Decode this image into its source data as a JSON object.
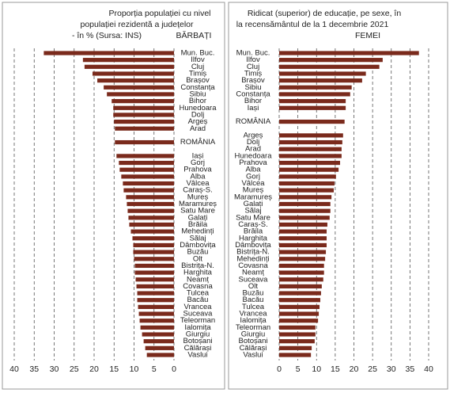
{
  "chart_data": [
    {
      "type": "hbar",
      "title": [
        "Proporția populației cu nivel",
        "populației rezidentă a județelor",
        "- în %  (Sursa: INS)"
      ],
      "categories": [
        "Mun. Buc.",
        "Ilfov",
        "Cluj",
        "Timiș",
        "Brașov",
        "Constanța",
        "Sibiu",
        "Bihor",
        "Hunedoara",
        "Dolj",
        "Argeș",
        "Arad",
        null,
        "ROMÂNIA",
        null,
        "Iași",
        "Gorj",
        "Prahova",
        "Alba",
        "Vâlcea",
        "Caraș-S.",
        "Mureș",
        "Maramureș",
        "Satu Mare",
        "Galați",
        "Brăila",
        "Mehedinți",
        "Sălaj",
        "Dâmbovița",
        "Buzău",
        "Olt",
        "Bistrița-N.",
        "Harghita",
        "Neamț",
        "Covasna",
        "Tulcea",
        "Bacău",
        "Vrancea",
        "Suceava",
        "Teleorman",
        "Ialomița",
        "Giurgiu",
        "Botoșani",
        "Călărași",
        "Vaslui"
      ],
      "series": [
        {
          "name": "BĂRBAȚI",
          "color": "#7a2a1c",
          "values": [
            32.6,
            22.8,
            22.4,
            20.4,
            19.2,
            17.6,
            16.8,
            15.6,
            15.2,
            15.2,
            15,
            14.8,
            null,
            14.8,
            null,
            14.4,
            13.8,
            13.6,
            13.2,
            12.8,
            12.6,
            12,
            11.8,
            11.6,
            11.4,
            11.2,
            10.8,
            10.4,
            10.2,
            10.2,
            10,
            9.8,
            9.8,
            9.6,
            9.4,
            9.2,
            9.2,
            9,
            8.8,
            8.6,
            8.4,
            8,
            7.6,
            7.2,
            6.8
          ]
        }
      ],
      "xlim": [
        40,
        0
      ],
      "xticks": [
        40,
        35,
        30,
        25,
        20,
        15,
        10,
        5,
        0
      ],
      "grid": true
    },
    {
      "type": "hbar",
      "title": [
        "Ridicat (superior) de educație, pe sexe,  în",
        "la recensământul de la 1 decembrie 2021"
      ],
      "categories": [
        "Mun. Buc.",
        "Ilfov",
        "Cluj",
        "Timiș",
        "Brașov",
        "Sibiu",
        "Constanța",
        "Bihor",
        "Iași",
        null,
        "ROMÂNIA",
        null,
        "Argeș",
        "Dolj",
        "Arad",
        "Hunedoara",
        "Prahova",
        "Alba",
        "Gorj",
        "Vâlcea",
        "Mureș",
        "Maramureș",
        "Galați",
        "Sălaj",
        "Satu Mare",
        "Caraș-S.",
        "Brăila",
        "Harghita",
        "Dâmbovița",
        "Bistrița-N.",
        "Mehedinți",
        "Covasna",
        "Neamț",
        "Suceava",
        "Olt",
        "Buzău",
        "Bacău",
        "Tulcea",
        "Vrancea",
        "Ialomița",
        "Teleorman",
        "Giurgiu",
        "Botoșani",
        "Călărași",
        "Vaslui"
      ],
      "series": [
        {
          "name": "FEMEI",
          "color": "#7a2a1c",
          "values": [
            37.4,
            27.7,
            26.8,
            23.2,
            22.2,
            19.4,
            19,
            17.8,
            17.8,
            null,
            17.5,
            null,
            17.1,
            16.9,
            16.7,
            16.7,
            16.3,
            15.9,
            15.2,
            14.8,
            14.6,
            14,
            13.7,
            13.7,
            13.5,
            12.9,
            12.7,
            12.7,
            12.7,
            12.5,
            12.3,
            12,
            12,
            11.8,
            11.4,
            11.2,
            11,
            10.8,
            10.6,
            10.4,
            9.7,
            9.7,
            9.5,
            8.7,
            8.5
          ]
        }
      ],
      "xlim": [
        0,
        40
      ],
      "xticks": [
        0,
        5,
        10,
        15,
        20,
        25,
        30,
        35,
        40
      ],
      "grid": true
    }
  ]
}
